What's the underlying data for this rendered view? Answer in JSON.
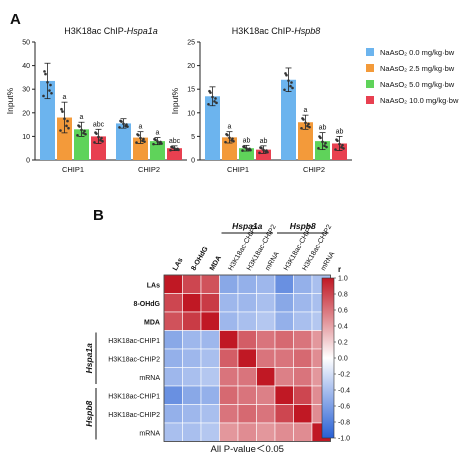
{
  "panel_a": {
    "letter": "A",
    "legend": [
      {
        "label": "NaAsO₂ 0.0 mg/kg·bw",
        "color": "#6cb4ee"
      },
      {
        "label": "NaAsO₂ 2.5 mg/kg·bw",
        "color": "#f39a3a"
      },
      {
        "label": "NaAsO₂ 5.0 mg/kg·bw",
        "color": "#5fd35a"
      },
      {
        "label": "NaAsO₂ 10.0 mg/kg·bw",
        "color": "#e84050"
      }
    ]
  },
  "panel_b": {
    "letter": "B",
    "footer": "All P-value＜0.05",
    "colorbar_label": "r"
  },
  "chart_data": [
    {
      "type": "bar",
      "title": "H3K18ac ChIP-Hspa1a",
      "title_prefix": "H3K18ac ChIP-",
      "title_gene": "Hspa1a",
      "ylabel": "Input%",
      "ylim": [
        0,
        50
      ],
      "yticks": [
        0,
        10,
        20,
        30,
        40,
        50
      ],
      "categories": [
        "CHIP1",
        "CHIP2"
      ],
      "series": [
        {
          "name": "NaAsO₂ 0.0 mg/kg·bw",
          "values": [
            33.5,
            15.5
          ],
          "err": [
            7.5,
            2.0
          ],
          "sig": [
            "",
            ""
          ]
        },
        {
          "name": "NaAsO₂ 2.5 mg/kg·bw",
          "values": [
            18.0,
            9.5
          ],
          "err": [
            6.5,
            2.5
          ],
          "sig": [
            "a",
            "a"
          ]
        },
        {
          "name": "NaAsO₂ 5.0 mg/kg·bw",
          "values": [
            13.0,
            8.0
          ],
          "err": [
            3.0,
            1.5
          ],
          "sig": [
            "a",
            "a"
          ]
        },
        {
          "name": "NaAsO₂ 10.0 mg/kg·bw",
          "values": [
            10.0,
            5.0
          ],
          "err": [
            3.0,
            1.0
          ],
          "sig": [
            "abc",
            "abc"
          ]
        }
      ]
    },
    {
      "type": "bar",
      "title": "H3K18ac ChIP-Hspb8",
      "title_prefix": "H3K18ac ChIP-",
      "title_gene": "Hspb8",
      "ylabel": "Input%",
      "ylim": [
        0,
        25
      ],
      "yticks": [
        0,
        5,
        10,
        15,
        20,
        25
      ],
      "categories": [
        "CHIP1",
        "CHIP2"
      ],
      "series": [
        {
          "name": "NaAsO₂ 0.0 mg/kg·bw",
          "values": [
            13.5,
            17.0
          ],
          "err": [
            2.0,
            2.5
          ],
          "sig": [
            "",
            ""
          ]
        },
        {
          "name": "NaAsO₂ 2.5 mg/kg·bw",
          "values": [
            4.8,
            8.0
          ],
          "err": [
            1.2,
            1.5
          ],
          "sig": [
            "a",
            "a"
          ]
        },
        {
          "name": "NaAsO₂ 5.0 mg/kg·bw",
          "values": [
            2.5,
            4.0
          ],
          "err": [
            0.6,
            1.8
          ],
          "sig": [
            "ab",
            "ab"
          ]
        },
        {
          "name": "NaAsO₂ 10.0 mg/kg·bw",
          "values": [
            2.2,
            3.5
          ],
          "err": [
            0.8,
            1.5
          ],
          "sig": [
            "ab",
            "ab"
          ]
        }
      ]
    },
    {
      "type": "heatmap",
      "labels": [
        "LAs",
        "8-OHdG",
        "MDA",
        "H3K18ac-CHIP1",
        "H3K18ac-CHIP2",
        "mRNA",
        "H3K18ac-CHIP1",
        "H3K18ac-CHIP2",
        "mRNA"
      ],
      "groups": [
        {
          "name": "Hspa1a",
          "start": 3,
          "end": 5
        },
        {
          "name": "Hspb8",
          "start": 6,
          "end": 8
        }
      ],
      "matrix": [
        [
          1.0,
          0.8,
          0.75,
          -0.55,
          -0.5,
          -0.45,
          -0.7,
          -0.5,
          -0.4
        ],
        [
          0.8,
          1.0,
          0.85,
          -0.45,
          -0.45,
          -0.4,
          -0.55,
          -0.45,
          -0.4
        ],
        [
          0.75,
          0.85,
          1.0,
          -0.45,
          -0.4,
          -0.35,
          -0.5,
          -0.4,
          -0.35
        ],
        [
          -0.55,
          -0.45,
          -0.45,
          1.0,
          0.7,
          0.6,
          0.65,
          0.6,
          0.45
        ],
        [
          -0.5,
          -0.45,
          -0.4,
          0.7,
          1.0,
          0.6,
          0.6,
          0.65,
          0.5
        ],
        [
          -0.45,
          -0.4,
          -0.35,
          0.6,
          0.6,
          1.0,
          0.55,
          0.6,
          0.45
        ],
        [
          -0.7,
          -0.55,
          -0.5,
          0.65,
          0.6,
          0.55,
          1.0,
          0.8,
          0.5
        ],
        [
          -0.5,
          -0.45,
          -0.4,
          0.6,
          0.65,
          0.6,
          0.8,
          1.0,
          0.5
        ],
        [
          -0.4,
          -0.4,
          -0.35,
          0.45,
          0.5,
          0.45,
          0.5,
          0.5,
          1.0
        ]
      ],
      "colorbar_ticks": [
        1.0,
        0.8,
        0.6,
        0.4,
        0.2,
        0.0,
        -0.2,
        -0.4,
        -0.6,
        -0.8,
        -1.0
      ],
      "vmin": -1.0,
      "vmax": 1.0
    }
  ]
}
